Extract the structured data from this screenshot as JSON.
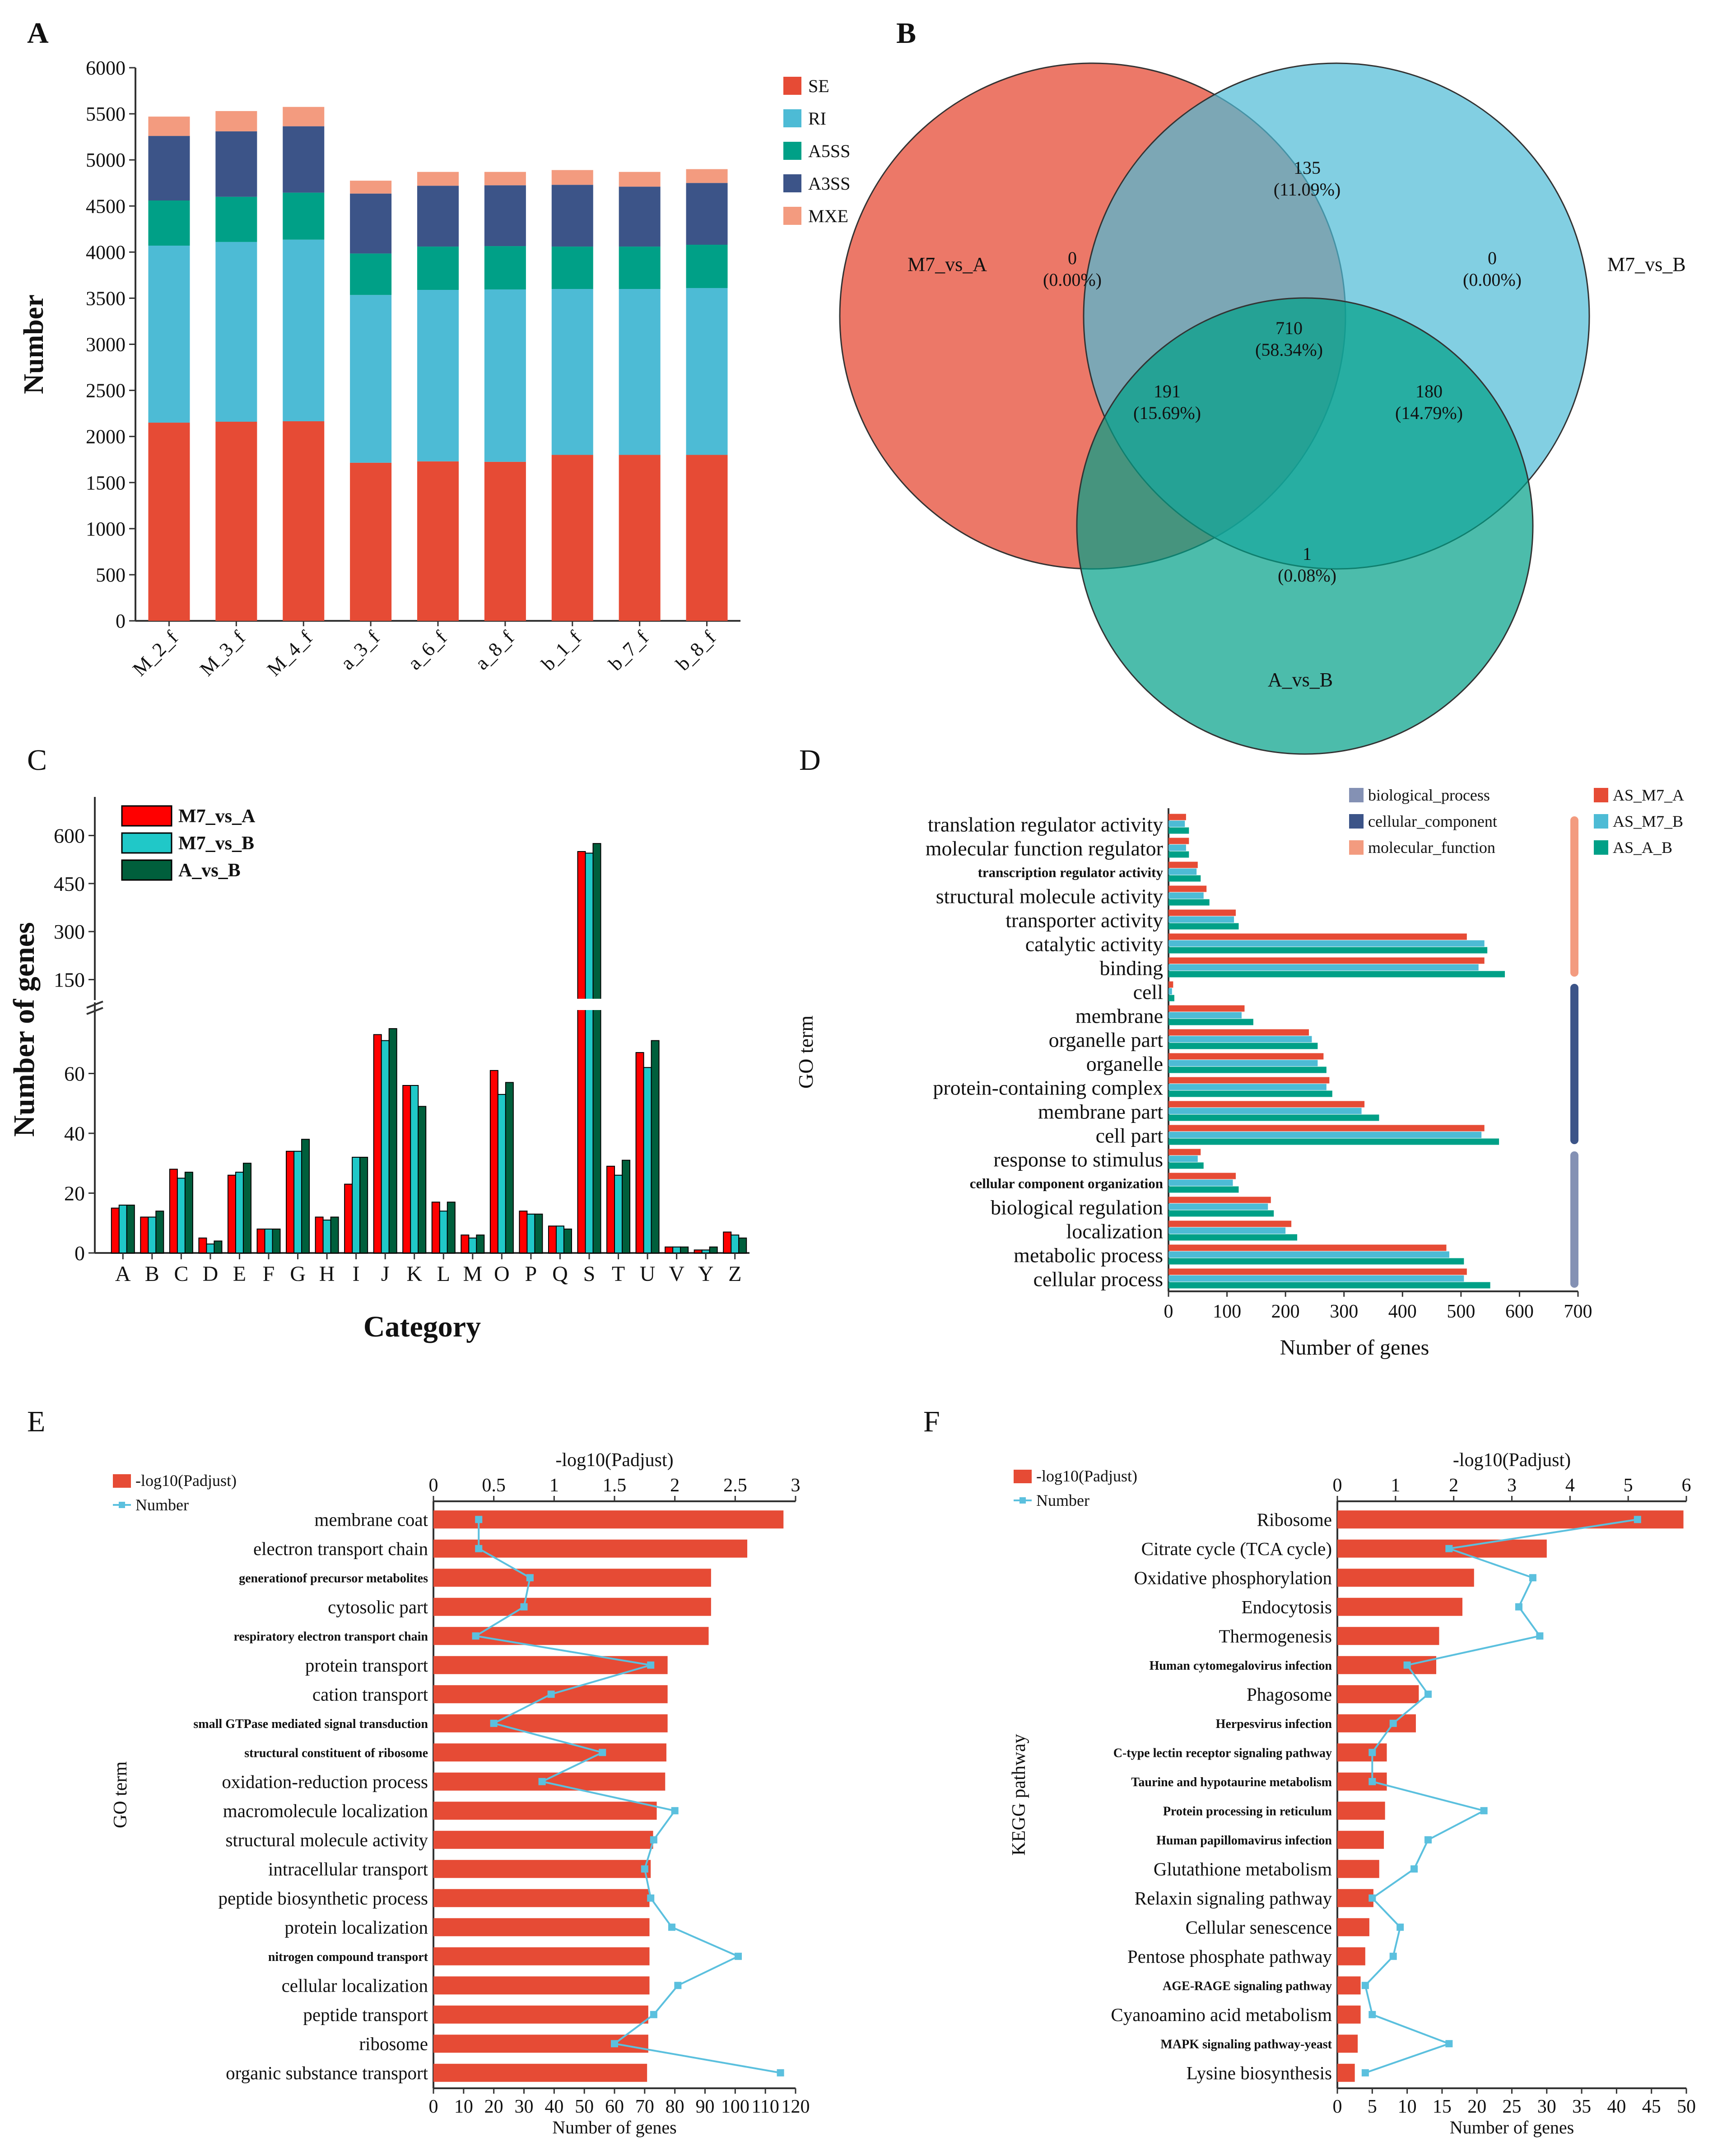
{
  "colors": {
    "SE": "#e64b35",
    "RI": "#4dbbd5",
    "A5SS": "#00a087",
    "A3SS": "#3c5488",
    "MXE": "#f39b7f",
    "venn_a": "#e64b35",
    "venn_b": "#4dbbd5",
    "venn_c": "#00a087",
    "c_A": "#ff0000",
    "c_B": "#20c8c8",
    "c_C": "#005f3c",
    "d_A": "#e64b35",
    "d_B": "#4dbbd5",
    "d_C": "#00a087",
    "d_bp": "#8491b4",
    "d_cc": "#3c5488",
    "d_mf": "#f39b7f",
    "bar_red": "#e64b35",
    "line_blue": "#5bc0de"
  },
  "chart_data": [
    {
      "panel": "A",
      "type": "bar",
      "stacked": true,
      "categories": [
        "M_2_f",
        "M_3_f",
        "M_4_f",
        "a_3_f",
        "a_6_f",
        "a_8_f",
        "b_1_f",
        "b_7_f",
        "b_8_f"
      ],
      "series": [
        {
          "name": "SE",
          "values": [
            2150,
            2160,
            2165,
            1715,
            1730,
            1725,
            1800,
            1800,
            1800
          ]
        },
        {
          "name": "RI",
          "values": [
            1920,
            1950,
            1970,
            1820,
            1860,
            1870,
            1800,
            1800,
            1810
          ]
        },
        {
          "name": "A5SS",
          "values": [
            490,
            490,
            510,
            450,
            470,
            470,
            460,
            460,
            470
          ]
        },
        {
          "name": "A3SS",
          "values": [
            700,
            710,
            720,
            650,
            660,
            660,
            670,
            650,
            670
          ]
        },
        {
          "name": "MXE",
          "values": [
            210,
            220,
            210,
            140,
            150,
            145,
            160,
            160,
            150
          ]
        }
      ],
      "ylabel": "Number",
      "ylim": [
        0,
        6000
      ],
      "yticks": [
        0,
        500,
        1000,
        1500,
        2000,
        2500,
        3000,
        3500,
        4000,
        4500,
        5000,
        5500,
        6000
      ]
    },
    {
      "panel": "B",
      "type": "venn",
      "sets": [
        "M7_vs_A",
        "M7_vs_B",
        "A_vs_B"
      ],
      "regions": [
        {
          "sets": "M7_vs_A only",
          "count": "0",
          "pct": "(0.00%)"
        },
        {
          "sets": "M7_vs_B only",
          "count": "0",
          "pct": "(0.00%)"
        },
        {
          "sets": "M7_vs_A & M7_vs_B",
          "count": "135",
          "pct": "(11.09%)"
        },
        {
          "sets": "all three",
          "count": "710",
          "pct": "(58.34%)"
        },
        {
          "sets": "M7_vs_A & A_vs_B",
          "count": "191",
          "pct": "(15.69%)"
        },
        {
          "sets": "M7_vs_B & A_vs_B",
          "count": "180",
          "pct": "(14.79%)"
        },
        {
          "sets": "A_vs_B only",
          "count": "1",
          "pct": "(0.08%)"
        }
      ]
    },
    {
      "panel": "C",
      "type": "bar",
      "categories": [
        "A",
        "B",
        "C",
        "D",
        "E",
        "F",
        "G",
        "H",
        "I",
        "J",
        "K",
        "L",
        "M",
        "O",
        "P",
        "Q",
        "S",
        "T",
        "U",
        "V",
        "Y",
        "Z"
      ],
      "series": [
        {
          "name": "M7_vs_A",
          "values": [
            15,
            12,
            28,
            5,
            26,
            8,
            34,
            12,
            23,
            73,
            56,
            17,
            6,
            61,
            14,
            9,
            550,
            29,
            67,
            2,
            1,
            7
          ]
        },
        {
          "name": "M7_vs_B",
          "values": [
            16,
            12,
            25,
            3,
            27,
            8,
            34,
            11,
            32,
            71,
            56,
            14,
            5,
            53,
            13,
            9,
            545,
            26,
            62,
            2,
            1,
            6
          ]
        },
        {
          "name": "A_vs_B",
          "values": [
            16,
            14,
            27,
            4,
            30,
            8,
            38,
            12,
            32,
            75,
            49,
            17,
            6,
            57,
            13,
            8,
            575,
            31,
            71,
            2,
            2,
            5
          ]
        }
      ],
      "xlabel": "Category",
      "ylabel": "Number of genes",
      "yticks_low": [
        0,
        20,
        40,
        60
      ],
      "yticks_high": [
        150,
        300,
        450,
        600
      ],
      "axis_break": "80 / 100"
    },
    {
      "panel": "D",
      "type": "bar",
      "orientation": "horizontal",
      "categories": [
        "translation regulator activity",
        "molecular function regulator",
        "transcription regulator activity",
        "structural molecule activity",
        "transporter activity",
        "catalytic activity",
        "binding",
        "cell",
        "membrane",
        "organelle part",
        "organelle",
        "protein-containing complex",
        "membrane part",
        "cell part",
        "response to stimulus",
        "cellular component organization",
        "biological regulation",
        "localization",
        "metabolic process",
        "cellular process"
      ],
      "category_group": [
        "molecular_function",
        "molecular_function",
        "molecular_function",
        "molecular_function",
        "molecular_function",
        "molecular_function",
        "molecular_function",
        "cellular_component",
        "cellular_component",
        "cellular_component",
        "cellular_component",
        "cellular_component",
        "cellular_component",
        "cellular_component",
        "biological_process",
        "biological_process",
        "biological_process",
        "biological_process",
        "biological_process",
        "biological_process"
      ],
      "series": [
        {
          "name": "AS_M7_A",
          "values": [
            30,
            35,
            50,
            65,
            115,
            510,
            540,
            8,
            130,
            240,
            265,
            275,
            335,
            540,
            55,
            115,
            175,
            210,
            475,
            510
          ]
        },
        {
          "name": "AS_M7_B",
          "values": [
            28,
            30,
            48,
            60,
            112,
            540,
            530,
            6,
            125,
            245,
            255,
            270,
            330,
            535,
            50,
            110,
            170,
            200,
            480,
            505
          ]
        },
        {
          "name": "AS_A_B",
          "values": [
            35,
            35,
            55,
            70,
            120,
            545,
            575,
            10,
            145,
            255,
            270,
            280,
            360,
            565,
            60,
            120,
            180,
            220,
            505,
            550
          ]
        }
      ],
      "legend_groups": [
        "biological_process",
        "cellular_component",
        "molecular_function"
      ],
      "xlabel": "Number of genes",
      "ylabel": "GO term",
      "xlim": [
        0,
        700
      ],
      "xticks": [
        0,
        100,
        200,
        300,
        400,
        500,
        600,
        700
      ]
    },
    {
      "panel": "E",
      "type": "bar",
      "orientation": "horizontal",
      "categories": [
        "membrane coat",
        "electron transport chain",
        "generationof precursor metabolites",
        "cytosolic part",
        "respiratory electron transport chain",
        "protein transport",
        "cation transport",
        "small GTPase mediated signal transduction",
        "structural constituent of ribosome",
        "oxidation-reduction process",
        "macromolecule localization",
        "structural molecule activity",
        "intracellular transport",
        "peptide biosynthetic process",
        "protein localization",
        "nitrogen compound transport",
        "cellular localization",
        "peptide transport",
        "ribosome",
        "organic substance transport"
      ],
      "series": [
        {
          "name": "-log10(Padjust)",
          "values": [
            2.9,
            2.6,
            2.3,
            2.3,
            2.28,
            1.94,
            1.94,
            1.94,
            1.93,
            1.92,
            1.85,
            1.82,
            1.8,
            1.79,
            1.79,
            1.79,
            1.79,
            1.78,
            1.78,
            1.77
          ]
        },
        {
          "name": "Number",
          "values": [
            15,
            15,
            32,
            30,
            14,
            72,
            39,
            20,
            56,
            36,
            80,
            73,
            70,
            72,
            79,
            101,
            81,
            73,
            60,
            115
          ]
        }
      ],
      "top_axis": "-log10(Padjust)",
      "top_xlim": [
        0,
        3
      ],
      "top_xticks": [
        "0",
        "0.5",
        "1",
        "1.5",
        "2",
        "2.5",
        "3"
      ],
      "bottom_axis": "Number of genes",
      "bottom_xlim": [
        0,
        120
      ],
      "bottom_xticks": [
        "0",
        "10",
        "20",
        "30",
        "40",
        "50",
        "60",
        "70",
        "80",
        "90",
        "100",
        "110",
        "120"
      ],
      "ylabel": "GO term"
    },
    {
      "panel": "F",
      "type": "bar",
      "orientation": "horizontal",
      "categories": [
        "Ribosome",
        "Citrate cycle (TCA cycle)",
        "Oxidative phosphorylation",
        "Endocytosis",
        "Thermogenesis",
        "Human cytomegalovirus infection",
        "Phagosome",
        "Herpesvirus infection",
        "C-type lectin receptor signaling pathway",
        "Taurine and hypotaurine metabolism",
        "Protein processing in reticulum",
        "Human papillomavirus infection",
        "Glutathione metabolism",
        "Relaxin signaling pathway",
        "Cellular senescence",
        "Pentose phosphate pathway",
        "AGE-RAGE signaling pathway",
        "Cyanoamino acid metabolism",
        "MAPK signaling pathway-yeast",
        "Lysine biosynthesis"
      ],
      "series": [
        {
          "name": "-log10(Padjust)",
          "values": [
            5.95,
            3.6,
            2.35,
            2.15,
            1.75,
            1.7,
            1.4,
            1.35,
            0.85,
            0.85,
            0.82,
            0.8,
            0.72,
            0.62,
            0.55,
            0.48,
            0.4,
            0.4,
            0.35,
            0.3
          ]
        },
        {
          "name": "Number",
          "values": [
            43,
            16,
            28,
            26,
            29,
            10,
            13,
            8,
            5,
            5,
            21,
            13,
            11,
            5,
            9,
            8,
            4,
            5,
            16,
            4
          ]
        }
      ],
      "top_axis": "-log10(Padjust)",
      "top_xlim": [
        0,
        6
      ],
      "top_xticks": [
        "0",
        "1",
        "2",
        "3",
        "4",
        "5",
        "6"
      ],
      "bottom_axis": "Number of genes",
      "bottom_xlim": [
        0,
        50
      ],
      "bottom_xticks": [
        "0",
        "5",
        "10",
        "15",
        "20",
        "25",
        "30",
        "35",
        "40",
        "45",
        "50"
      ],
      "ylabel": "KEGG pathway"
    }
  ],
  "panel_labels": {
    "A": "A",
    "B": "B",
    "C": "C",
    "D": "D",
    "E": "E",
    "F": "F"
  }
}
